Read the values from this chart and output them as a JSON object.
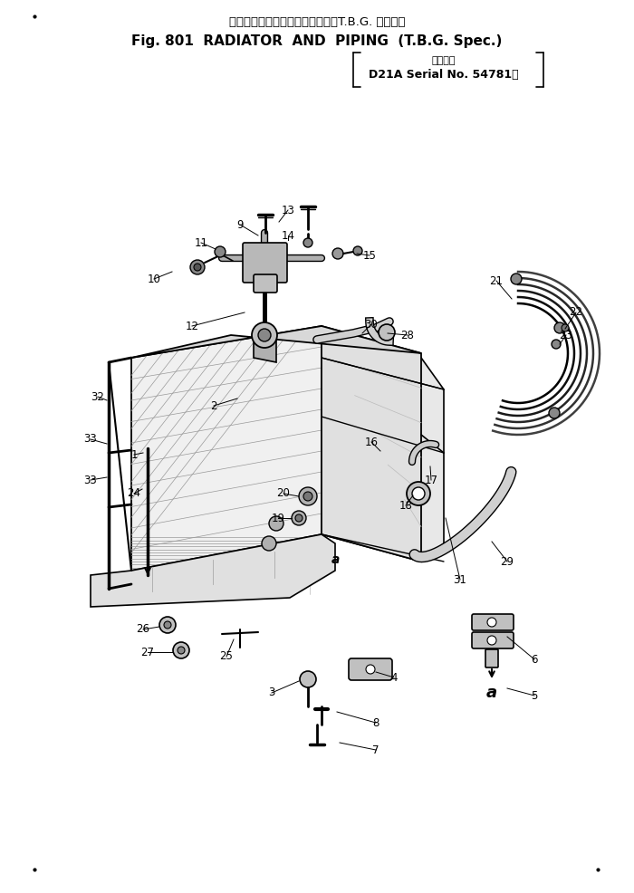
{
  "title_jp": "ラジエータ　およびパイピング（T.B.G. 仕　様）",
  "title_en": "Fig. 801  RADIATOR  AND  PIPING  (T.B.G. Spec.)",
  "subtitle_jp": "適用号機",
  "subtitle_en": "D21A Serial No. 54781～",
  "bg_color": "#ffffff",
  "figsize": [
    7.0,
    9.86
  ],
  "dpi": 100
}
